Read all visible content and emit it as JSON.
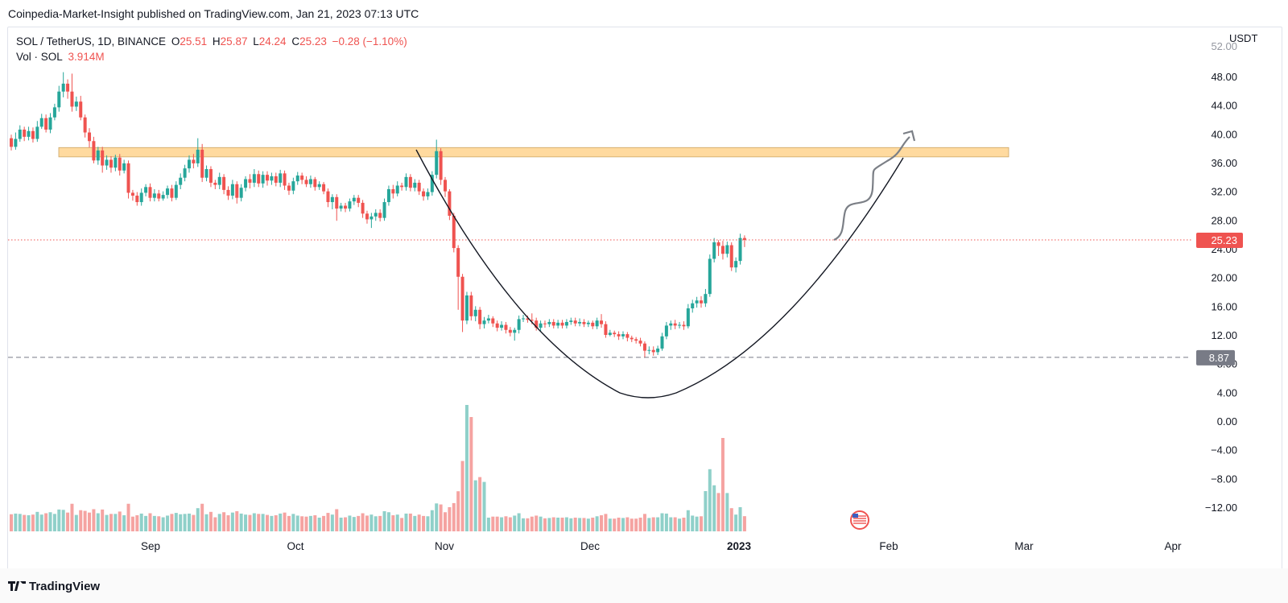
{
  "header": {
    "publisher_line": "Coinpedia-Market-Insight published on TradingView.com, Jan 21, 2023 07:13 UTC"
  },
  "legend": {
    "symbol": "SOL / TetherUS, 1D, BINANCE",
    "o_label": "O",
    "o_value": "25.51",
    "h_label": "H",
    "h_value": "25.87",
    "l_label": "L",
    "l_value": "24.24",
    "c_label": "C",
    "c_value": "25.23",
    "change": "−0.28 (−1.10%)",
    "vol_label": "Vol · SOL",
    "vol_value": "3.914M"
  },
  "axis": {
    "currency": "USDT"
  },
  "footer": {
    "brand": "TradingView"
  },
  "colors": {
    "up": "#26a69a",
    "down": "#ef5350",
    "up_vol": "#8fd0c9",
    "down_vol": "#f5a3a1",
    "zone": "#ffd99a",
    "price_tag": "#ef5350",
    "low_tag": "#787b86"
  },
  "chart_data": {
    "type": "candlestick",
    "y_ticks": [
      "48.00",
      "44.00",
      "40.00",
      "36.00",
      "32.00",
      "28.00",
      "24.00",
      "20.00",
      "16.00",
      "12.00",
      "8.00",
      "4.00",
      "0.00",
      "−4.00",
      "−8.00",
      "−12.00"
    ],
    "ylim": [
      -14,
      52
    ],
    "x_ticks": [
      "Sep",
      "Oct",
      "Nov",
      "Dec",
      "2023",
      "Feb",
      "Mar",
      "Apr"
    ],
    "last_price": "25.23",
    "low_marker": "8.87",
    "resistance_zone": [
      36.8,
      38.1
    ],
    "cup_curve": {
      "left": [
        30,
        41
      ],
      "bottom": [
        12,
        3.6
      ],
      "right": [
        32,
        37
      ]
    },
    "candles": [
      [
        39.4,
        38.2,
        37.7,
        39.9
      ],
      [
        38.2,
        39.3,
        37.8,
        40.2
      ],
      [
        39.3,
        40.6,
        38.9,
        41.2
      ],
      [
        40.6,
        39.6,
        39.0,
        41.0
      ],
      [
        39.6,
        40.4,
        39.1,
        41.0
      ],
      [
        40.4,
        39.3,
        38.8,
        40.9
      ],
      [
        39.3,
        41.0,
        38.9,
        41.8
      ],
      [
        41.0,
        42.2,
        40.7,
        42.8
      ],
      [
        42.2,
        40.6,
        40.2,
        42.7
      ],
      [
        40.6,
        42.3,
        40.1,
        42.9
      ],
      [
        42.3,
        43.7,
        41.9,
        44.2
      ],
      [
        43.7,
        45.9,
        43.1,
        46.7
      ],
      [
        45.9,
        47.0,
        45.1,
        48.6
      ],
      [
        47.0,
        45.9,
        44.9,
        47.6
      ],
      [
        45.9,
        43.8,
        43.1,
        48.4
      ],
      [
        43.8,
        44.5,
        43.2,
        45.2
      ],
      [
        44.5,
        42.3,
        41.9,
        45.3
      ],
      [
        42.3,
        40.2,
        39.5,
        42.7
      ],
      [
        40.2,
        39.0,
        38.1,
        40.8
      ],
      [
        39.0,
        36.3,
        35.9,
        39.6
      ],
      [
        36.3,
        37.7,
        35.7,
        38.2
      ],
      [
        37.7,
        35.6,
        34.6,
        38.2
      ],
      [
        35.6,
        36.4,
        35.0,
        37.0
      ],
      [
        36.4,
        35.3,
        34.6,
        36.9
      ],
      [
        35.3,
        36.7,
        34.8,
        37.1
      ],
      [
        36.7,
        34.9,
        34.2,
        37.2
      ],
      [
        34.9,
        35.9,
        34.5,
        36.4
      ],
      [
        35.9,
        31.8,
        31.0,
        36.3
      ],
      [
        31.8,
        31.4,
        30.7,
        32.2
      ],
      [
        31.4,
        30.5,
        30.0,
        31.9
      ],
      [
        30.5,
        31.8,
        30.0,
        32.4
      ],
      [
        31.8,
        32.6,
        31.3,
        33.0
      ],
      [
        32.6,
        31.1,
        30.6,
        33.1
      ],
      [
        31.1,
        31.7,
        30.6,
        32.3
      ],
      [
        31.7,
        31.0,
        30.6,
        32.2
      ],
      [
        31.0,
        31.5,
        30.7,
        32.0
      ],
      [
        31.5,
        32.4,
        31.0,
        32.8
      ],
      [
        32.4,
        31.1,
        30.6,
        32.9
      ],
      [
        31.1,
        32.9,
        30.8,
        33.4
      ],
      [
        32.9,
        33.9,
        32.3,
        34.5
      ],
      [
        33.9,
        35.2,
        33.4,
        35.7
      ],
      [
        35.2,
        36.4,
        34.6,
        37.0
      ],
      [
        36.4,
        35.9,
        35.2,
        37.2
      ],
      [
        35.9,
        37.8,
        35.4,
        39.4
      ],
      [
        37.8,
        33.9,
        33.3,
        38.6
      ],
      [
        33.9,
        35.1,
        33.4,
        35.6
      ],
      [
        35.1,
        33.2,
        32.6,
        35.5
      ],
      [
        33.2,
        32.9,
        32.3,
        33.6
      ],
      [
        32.9,
        34.0,
        32.3,
        34.6
      ],
      [
        34.0,
        32.2,
        31.6,
        34.4
      ],
      [
        32.2,
        31.4,
        30.8,
        32.7
      ],
      [
        31.4,
        33.0,
        30.9,
        33.6
      ],
      [
        33.0,
        31.1,
        30.3,
        33.4
      ],
      [
        31.1,
        32.5,
        30.6,
        33.0
      ],
      [
        32.5,
        33.7,
        32.0,
        34.1
      ],
      [
        33.7,
        33.2,
        32.4,
        34.4
      ],
      [
        33.2,
        34.4,
        32.6,
        35.1
      ],
      [
        34.4,
        33.1,
        32.6,
        34.9
      ],
      [
        33.1,
        34.3,
        32.5,
        34.8
      ],
      [
        34.3,
        33.5,
        32.8,
        34.8
      ],
      [
        33.5,
        34.1,
        32.9,
        34.6
      ],
      [
        34.1,
        33.2,
        32.7,
        34.6
      ],
      [
        33.2,
        34.5,
        32.6,
        35.0
      ],
      [
        34.5,
        32.8,
        32.2,
        34.9
      ],
      [
        32.8,
        32.1,
        31.5,
        33.2
      ],
      [
        32.1,
        33.4,
        31.6,
        33.9
      ],
      [
        33.4,
        34.2,
        32.9,
        34.7
      ],
      [
        34.2,
        33.6,
        33.0,
        34.6
      ],
      [
        33.6,
        33.0,
        32.6,
        34.1
      ],
      [
        33.0,
        33.7,
        32.5,
        34.2
      ],
      [
        33.7,
        32.6,
        32.1,
        34.0
      ],
      [
        32.6,
        33.0,
        32.2,
        33.4
      ],
      [
        33.0,
        32.0,
        31.6,
        33.3
      ],
      [
        32.0,
        30.5,
        29.8,
        32.4
      ],
      [
        30.5,
        31.2,
        29.5,
        31.6
      ],
      [
        31.2,
        29.6,
        27.9,
        31.6
      ],
      [
        29.6,
        30.0,
        29.2,
        30.4
      ],
      [
        30.0,
        29.6,
        29.1,
        30.4
      ],
      [
        29.6,
        30.6,
        29.2,
        31.0
      ],
      [
        30.6,
        31.1,
        30.1,
        31.5
      ],
      [
        31.1,
        30.4,
        29.8,
        31.5
      ],
      [
        30.4,
        28.9,
        28.3,
        30.8
      ],
      [
        28.9,
        28.1,
        27.5,
        29.3
      ],
      [
        28.1,
        28.5,
        26.9,
        29.0
      ],
      [
        28.5,
        29.0,
        27.9,
        29.5
      ],
      [
        29.0,
        28.3,
        27.8,
        29.5
      ],
      [
        28.3,
        30.5,
        27.9,
        31.0
      ],
      [
        30.5,
        32.3,
        30.0,
        32.8
      ],
      [
        32.3,
        31.7,
        31.0,
        32.9
      ],
      [
        31.7,
        32.8,
        31.3,
        33.4
      ],
      [
        32.8,
        32.6,
        32.1,
        33.2
      ],
      [
        32.6,
        34.0,
        32.1,
        34.5
      ],
      [
        34.0,
        32.5,
        32.0,
        34.4
      ],
      [
        32.5,
        33.2,
        32.0,
        33.7
      ],
      [
        33.2,
        32.0,
        31.5,
        33.6
      ],
      [
        32.0,
        31.3,
        30.7,
        32.4
      ],
      [
        31.3,
        31.9,
        30.8,
        32.4
      ],
      [
        31.9,
        34.3,
        31.4,
        34.8
      ],
      [
        34.3,
        37.6,
        33.8,
        39.2
      ],
      [
        37.6,
        33.6,
        32.9,
        38.0
      ],
      [
        33.6,
        32.0,
        31.2,
        34.0
      ],
      [
        32.0,
        28.6,
        28.0,
        32.3
      ],
      [
        28.6,
        24.1,
        23.5,
        29.0
      ],
      [
        24.1,
        20.1,
        15.5,
        24.5
      ],
      [
        20.1,
        14.0,
        12.4,
        20.5
      ],
      [
        14.0,
        17.5,
        13.5,
        18.0
      ],
      [
        17.5,
        14.6,
        14.0,
        18.0
      ],
      [
        14.6,
        15.5,
        13.9,
        16.0
      ],
      [
        15.5,
        13.5,
        12.8,
        15.9
      ],
      [
        13.5,
        14.0,
        12.9,
        14.5
      ],
      [
        14.0,
        14.3,
        13.6,
        14.8
      ],
      [
        14.3,
        13.6,
        13.1,
        14.6
      ],
      [
        13.6,
        13.0,
        12.5,
        14.0
      ],
      [
        13.0,
        13.4,
        12.6,
        13.9
      ],
      [
        13.4,
        12.7,
        12.2,
        13.8
      ],
      [
        12.7,
        12.3,
        11.8,
        13.1
      ],
      [
        12.3,
        12.7,
        11.2,
        13.0
      ],
      [
        12.7,
        14.2,
        12.2,
        14.7
      ],
      [
        14.2,
        14.3,
        13.8,
        14.8
      ],
      [
        14.3,
        14.1,
        13.7,
        14.7
      ],
      [
        14.1,
        14.0,
        13.5,
        15.0
      ],
      [
        14.0,
        13.0,
        12.6,
        14.4
      ],
      [
        13.0,
        13.6,
        12.5,
        14.0
      ],
      [
        13.6,
        13.5,
        13.0,
        14.0
      ],
      [
        13.5,
        13.8,
        13.1,
        14.2
      ],
      [
        13.8,
        13.3,
        12.9,
        14.2
      ],
      [
        13.3,
        13.7,
        12.9,
        14.1
      ],
      [
        13.7,
        13.3,
        12.9,
        14.1
      ],
      [
        13.3,
        13.8,
        12.9,
        14.2
      ],
      [
        13.8,
        14.0,
        13.4,
        14.4
      ],
      [
        14.0,
        13.6,
        13.2,
        14.4
      ],
      [
        13.6,
        13.8,
        13.2,
        14.3
      ],
      [
        13.8,
        13.5,
        13.1,
        14.2
      ],
      [
        13.5,
        13.7,
        13.1,
        14.0
      ],
      [
        13.7,
        13.2,
        12.8,
        14.0
      ],
      [
        13.2,
        14.0,
        12.8,
        14.4
      ],
      [
        14.0,
        13.5,
        13.0,
        14.9
      ],
      [
        13.5,
        12.0,
        11.6,
        13.9
      ],
      [
        12.0,
        12.3,
        11.8,
        12.7
      ],
      [
        12.3,
        12.1,
        11.7,
        12.6
      ],
      [
        12.1,
        11.8,
        11.3,
        12.5
      ],
      [
        11.8,
        12.1,
        11.4,
        12.5
      ],
      [
        12.1,
        11.6,
        11.1,
        12.4
      ],
      [
        11.6,
        11.4,
        11.0,
        11.9
      ],
      [
        11.4,
        11.2,
        10.8,
        11.7
      ],
      [
        11.2,
        10.8,
        10.4,
        11.6
      ],
      [
        10.8,
        9.8,
        8.8,
        11.1
      ],
      [
        9.8,
        9.9,
        9.3,
        10.4
      ],
      [
        9.9,
        9.6,
        9.1,
        10.4
      ],
      [
        9.6,
        10.1,
        9.2,
        10.5
      ],
      [
        10.1,
        11.8,
        9.8,
        12.3
      ],
      [
        11.8,
        13.3,
        11.4,
        13.8
      ],
      [
        13.3,
        13.6,
        12.7,
        14.0
      ],
      [
        13.6,
        13.3,
        12.8,
        14.1
      ],
      [
        13.3,
        13.4,
        12.9,
        13.8
      ],
      [
        13.4,
        13.2,
        12.7,
        13.9
      ],
      [
        13.2,
        15.7,
        12.9,
        16.3
      ],
      [
        15.7,
        16.4,
        15.1,
        16.9
      ],
      [
        16.4,
        16.8,
        15.8,
        17.3
      ],
      [
        16.8,
        16.4,
        15.8,
        17.4
      ],
      [
        16.4,
        17.7,
        15.9,
        18.4
      ],
      [
        17.7,
        22.6,
        17.3,
        23.2
      ],
      [
        22.6,
        24.9,
        22.1,
        25.5
      ],
      [
        24.9,
        24.4,
        23.0,
        25.2
      ],
      [
        24.4,
        23.3,
        22.5,
        25.1
      ],
      [
        23.3,
        24.5,
        22.8,
        25.0
      ],
      [
        24.5,
        21.4,
        20.9,
        24.9
      ],
      [
        21.4,
        22.3,
        20.7,
        22.8
      ],
      [
        22.3,
        25.5,
        21.8,
        26.1
      ],
      [
        25.5,
        25.23,
        24.24,
        25.87
      ]
    ],
    "volume_note": "volume bars drawn in lower pane"
  }
}
